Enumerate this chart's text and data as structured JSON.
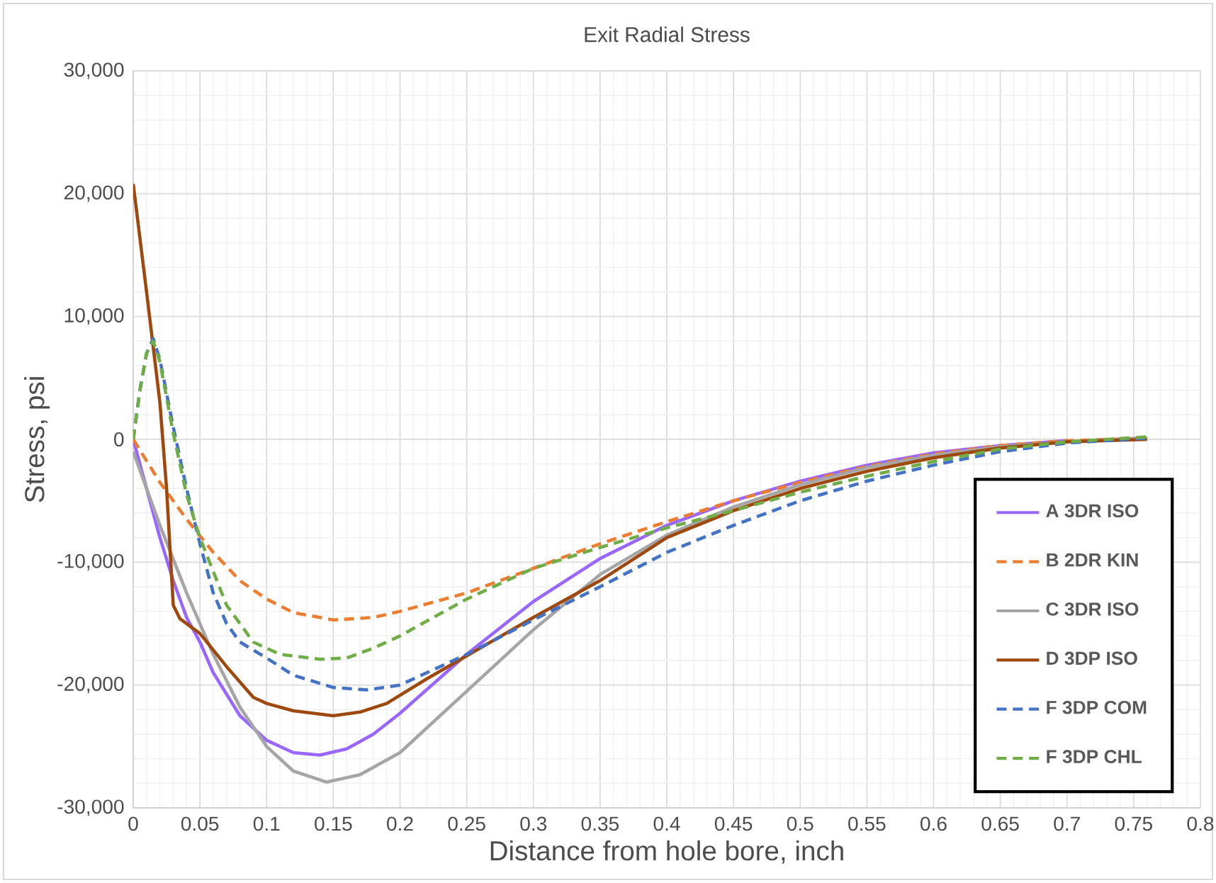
{
  "chart_data": {
    "type": "line",
    "title": "Exit Radial Stress",
    "xlabel": "Distance from hole bore, inch",
    "ylabel": "Stress, psi",
    "xlim": [
      0,
      0.8
    ],
    "ylim": [
      -30000,
      30000
    ],
    "xticks": [
      0,
      0.05,
      0.1,
      0.15,
      0.2,
      0.25,
      0.3,
      0.35,
      0.4,
      0.45,
      0.5,
      0.55,
      0.6,
      0.65,
      0.7,
      0.75,
      0.8
    ],
    "yticks": [
      {
        "value": -30000,
        "label": "-30,000"
      },
      {
        "value": -20000,
        "label": "-20,000"
      },
      {
        "value": -10000,
        "label": "-10,000"
      },
      0,
      {
        "value": 10000,
        "label": "10,000"
      },
      {
        "value": 20000,
        "label": "20,000"
      },
      {
        "value": 30000,
        "label": "30,000"
      }
    ],
    "grid": true,
    "legend": "bottom right",
    "marker": "none",
    "series": [
      {
        "name": "A 3DR ISO",
        "color": "#9966ff",
        "line_style": "solid",
        "x": [
          0,
          0.01,
          0.02,
          0.03,
          0.04,
          0.05,
          0.06,
          0.08,
          0.1,
          0.12,
          0.14,
          0.16,
          0.18,
          0.2,
          0.25,
          0.3,
          0.35,
          0.4,
          0.45,
          0.5,
          0.55,
          0.6,
          0.65,
          0.7
        ],
        "values": [
          0,
          -4000,
          -8000,
          -11500,
          -14500,
          -16500,
          -19000,
          -22500,
          -24500,
          -25500,
          -25700,
          -25200,
          -24000,
          -22300,
          -17500,
          -13200,
          -9700,
          -7000,
          -5000,
          -3400,
          -2100,
          -1100,
          -500,
          -100
        ]
      },
      {
        "name": "B 2DR KIN",
        "color": "#ed7d31",
        "line_style": "dashed",
        "x": [
          0,
          0.02,
          0.04,
          0.06,
          0.08,
          0.1,
          0.12,
          0.15,
          0.18,
          0.2,
          0.25,
          0.3,
          0.35,
          0.4,
          0.45,
          0.5,
          0.55,
          0.6,
          0.65,
          0.7,
          0.76
        ],
        "values": [
          0,
          -3500,
          -6500,
          -9200,
          -11500,
          -13000,
          -14100,
          -14700,
          -14500,
          -14000,
          -12500,
          -10500,
          -8500,
          -6700,
          -5000,
          -3500,
          -2200,
          -1200,
          -500,
          -100,
          100
        ]
      },
      {
        "name": "C 3DR ISO",
        "color": "#a5a5a5",
        "line_style": "solid",
        "x": [
          0,
          0.02,
          0.04,
          0.06,
          0.08,
          0.1,
          0.12,
          0.145,
          0.17,
          0.2,
          0.25,
          0.3,
          0.35,
          0.4,
          0.45,
          0.5,
          0.55,
          0.6,
          0.65,
          0.7,
          0.76
        ],
        "values": [
          -1000,
          -7000,
          -12500,
          -17500,
          -21800,
          -25000,
          -27000,
          -27900,
          -27300,
          -25500,
          -20500,
          -15500,
          -11000,
          -7800,
          -5500,
          -3700,
          -2300,
          -1300,
          -600,
          -200,
          100
        ]
      },
      {
        "name": "D 3DP ISO",
        "color": "#9e480e",
        "line_style": "solid",
        "x": [
          0,
          0.01,
          0.02,
          0.025,
          0.03,
          0.035,
          0.05,
          0.07,
          0.09,
          0.1,
          0.12,
          0.15,
          0.17,
          0.19,
          0.22,
          0.26,
          0.3,
          0.35,
          0.4,
          0.45,
          0.5,
          0.55,
          0.6,
          0.65,
          0.7,
          0.76
        ],
        "values": [
          20800,
          12000,
          3000,
          -4000,
          -13500,
          -14600,
          -15800,
          -18500,
          -21000,
          -21500,
          -22100,
          -22500,
          -22200,
          -21500,
          -19500,
          -17000,
          -14500,
          -11500,
          -8000,
          -5800,
          -4000,
          -2600,
          -1500,
          -700,
          -200,
          0
        ]
      },
      {
        "name": "F 3DP COM",
        "color": "#4472c4",
        "line_style": "dashed",
        "x": [
          0,
          0.005,
          0.01,
          0.015,
          0.02,
          0.03,
          0.04,
          0.05,
          0.06,
          0.07,
          0.08,
          0.1,
          0.12,
          0.15,
          0.175,
          0.2,
          0.25,
          0.3,
          0.35,
          0.4,
          0.45,
          0.5,
          0.55,
          0.6,
          0.65,
          0.7,
          0.76
        ],
        "values": [
          0,
          4000,
          7000,
          8200,
          6500,
          1000,
          -4000,
          -8500,
          -12500,
          -15000,
          -16500,
          -17800,
          -19200,
          -20200,
          -20400,
          -20000,
          -17500,
          -14700,
          -12000,
          -9200,
          -7000,
          -5000,
          -3400,
          -2100,
          -1000,
          -300,
          100
        ]
      },
      {
        "name": "F 3DP CHL",
        "color": "#70ad47",
        "line_style": "dashed",
        "x": [
          0,
          0.005,
          0.01,
          0.015,
          0.02,
          0.03,
          0.04,
          0.05,
          0.07,
          0.09,
          0.11,
          0.14,
          0.16,
          0.18,
          0.2,
          0.25,
          0.3,
          0.35,
          0.4,
          0.45,
          0.5,
          0.55,
          0.6,
          0.65,
          0.7,
          0.76
        ],
        "values": [
          0,
          4000,
          7000,
          8000,
          6300,
          500,
          -4500,
          -8000,
          -13500,
          -16500,
          -17500,
          -17900,
          -17800,
          -17000,
          -16000,
          -13000,
          -10500,
          -8800,
          -7200,
          -5800,
          -4300,
          -3000,
          -1800,
          -800,
          -200,
          200
        ]
      }
    ]
  }
}
